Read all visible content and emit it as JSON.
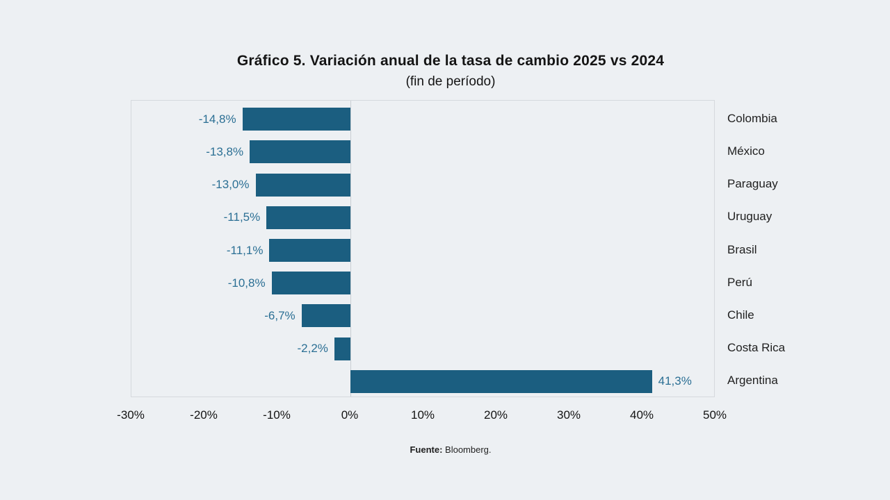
{
  "title": "Gráfico 5. Variación anual de la tasa de cambio 2025 vs 2024",
  "subtitle": "(fin de período)",
  "source": {
    "label": "Fuente:",
    "text": " Bloomberg."
  },
  "colors": {
    "background": "#edf0f3",
    "bar": "#1b5e80",
    "value_label": "#2b6f94",
    "plot_border": "#d5d9dd",
    "zero_line": "#c9ced3",
    "text": "#141414"
  },
  "chart_data": {
    "type": "bar",
    "orientation": "horizontal",
    "title": "Gráfico 5. Variación anual de la tasa de cambio 2025 vs 2024",
    "subtitle": "(fin de período)",
    "categories": [
      "Colombia",
      "México",
      "Paraguay",
      "Uruguay",
      "Brasil",
      "Perú",
      "Chile",
      "Costa Rica",
      "Argentina"
    ],
    "values": [
      -14.8,
      -13.8,
      -13.0,
      -11.5,
      -11.1,
      -10.8,
      -6.7,
      -2.2,
      41.3
    ],
    "value_labels": [
      "-14,8%",
      "-13,8%",
      "-13,0%",
      "-11,5%",
      "-11,1%",
      "-10,8%",
      "-6,7%",
      "-2,2%",
      "41,3%"
    ],
    "x_tick_values": [
      -30,
      -20,
      -10,
      0,
      10,
      20,
      30,
      40,
      50
    ],
    "x_tick_labels": [
      "-30%",
      "-20%",
      "-10%",
      "0%",
      "10%",
      "20%",
      "30%",
      "40%",
      "50%"
    ],
    "xlim": [
      -30,
      50
    ],
    "grid": false,
    "legend": false,
    "source": "Fuente: Bloomberg."
  }
}
